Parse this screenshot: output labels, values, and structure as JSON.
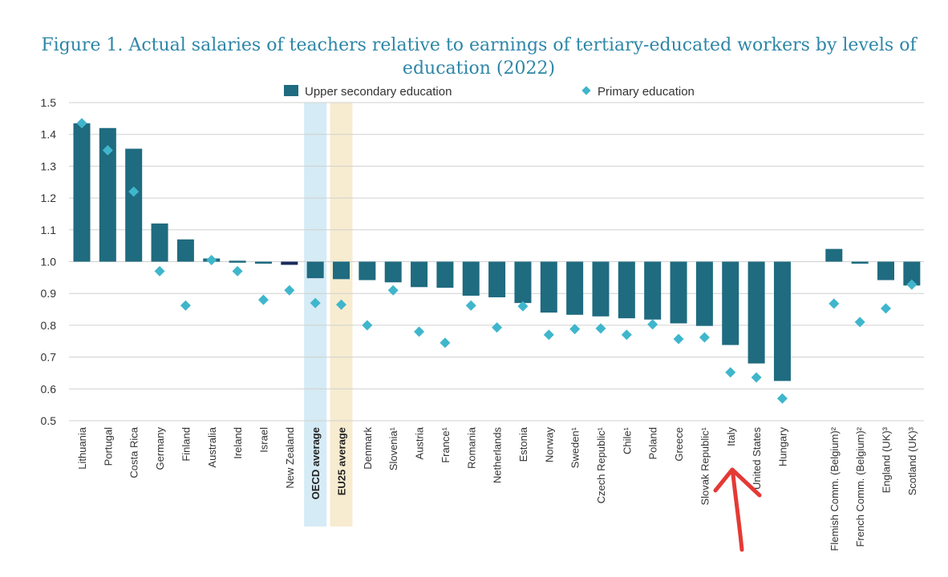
{
  "chart_data": {
    "type": "bar",
    "title_line1": "Figure 1. Actual salaries of teachers relative to earnings of tertiary-educated workers by levels of",
    "title_line2": "education (2022)",
    "xlabel": "",
    "ylabel": "",
    "ylim": [
      0.5,
      1.5
    ],
    "yticks": [
      "1.5",
      "1.4",
      "1.3",
      "1.2",
      "1.1",
      "1.0",
      "0.9",
      "0.8",
      "0.7",
      "0.6",
      "0.5"
    ],
    "grid": true,
    "legend_placement": "top",
    "categories": [
      "Lithuania",
      "Portugal",
      "Costa Rica",
      "Germany",
      "Finland",
      "Australia",
      "Ireland",
      "Israel",
      "New Zealand",
      "OECD average",
      "EU25 average",
      "Denmark",
      "Slovenia¹",
      "Austria",
      "France¹",
      "Romania",
      "Netherlands",
      "Estonia",
      "Norway",
      "Sweden¹",
      "Czech Republic¹",
      "Chile¹",
      "Poland",
      "Greece",
      "Slovak Republic¹",
      "Italy",
      "United States",
      "Hungary",
      "Flemish Comm. (Belgium)²",
      "French Comm. (Belgium)²",
      "England (UK)³",
      "Scotland (UK)³"
    ],
    "highlighted": [
      "OECD average",
      "EU25 average"
    ],
    "series": [
      {
        "name": "Upper secondary education",
        "color": "#1f6b80",
        "values": [
          1.435,
          1.42,
          1.355,
          1.12,
          1.07,
          1.01,
          1.003,
          1.0,
          0.99,
          0.948,
          0.945,
          0.942,
          0.935,
          0.92,
          0.918,
          0.893,
          0.888,
          0.87,
          0.84,
          0.833,
          0.828,
          0.822,
          0.818,
          0.806,
          0.798,
          0.738,
          0.68,
          0.625,
          1.04,
          0.998,
          0.942,
          0.925
        ]
      },
      {
        "name": "Primary education",
        "color": "#3fb6cc",
        "values": [
          1.435,
          1.35,
          1.22,
          0.97,
          0.862,
          1.005,
          0.97,
          0.88,
          0.91,
          0.87,
          0.865,
          0.8,
          0.91,
          0.78,
          0.745,
          0.862,
          0.793,
          0.86,
          0.77,
          0.788,
          0.79,
          0.77,
          0.803,
          0.757,
          0.762,
          0.652,
          0.636,
          0.57,
          0.868,
          0.81,
          0.853,
          0.928
        ]
      }
    ],
    "colors": {
      "highlight_negative_bar": "#1b2a5e",
      "oecd_band": "#d5ebf5",
      "eu25_band": "#f7ecd0",
      "annotation_arrow": "#e53935"
    },
    "annotation": "red-arrow pointing at Italy"
  }
}
